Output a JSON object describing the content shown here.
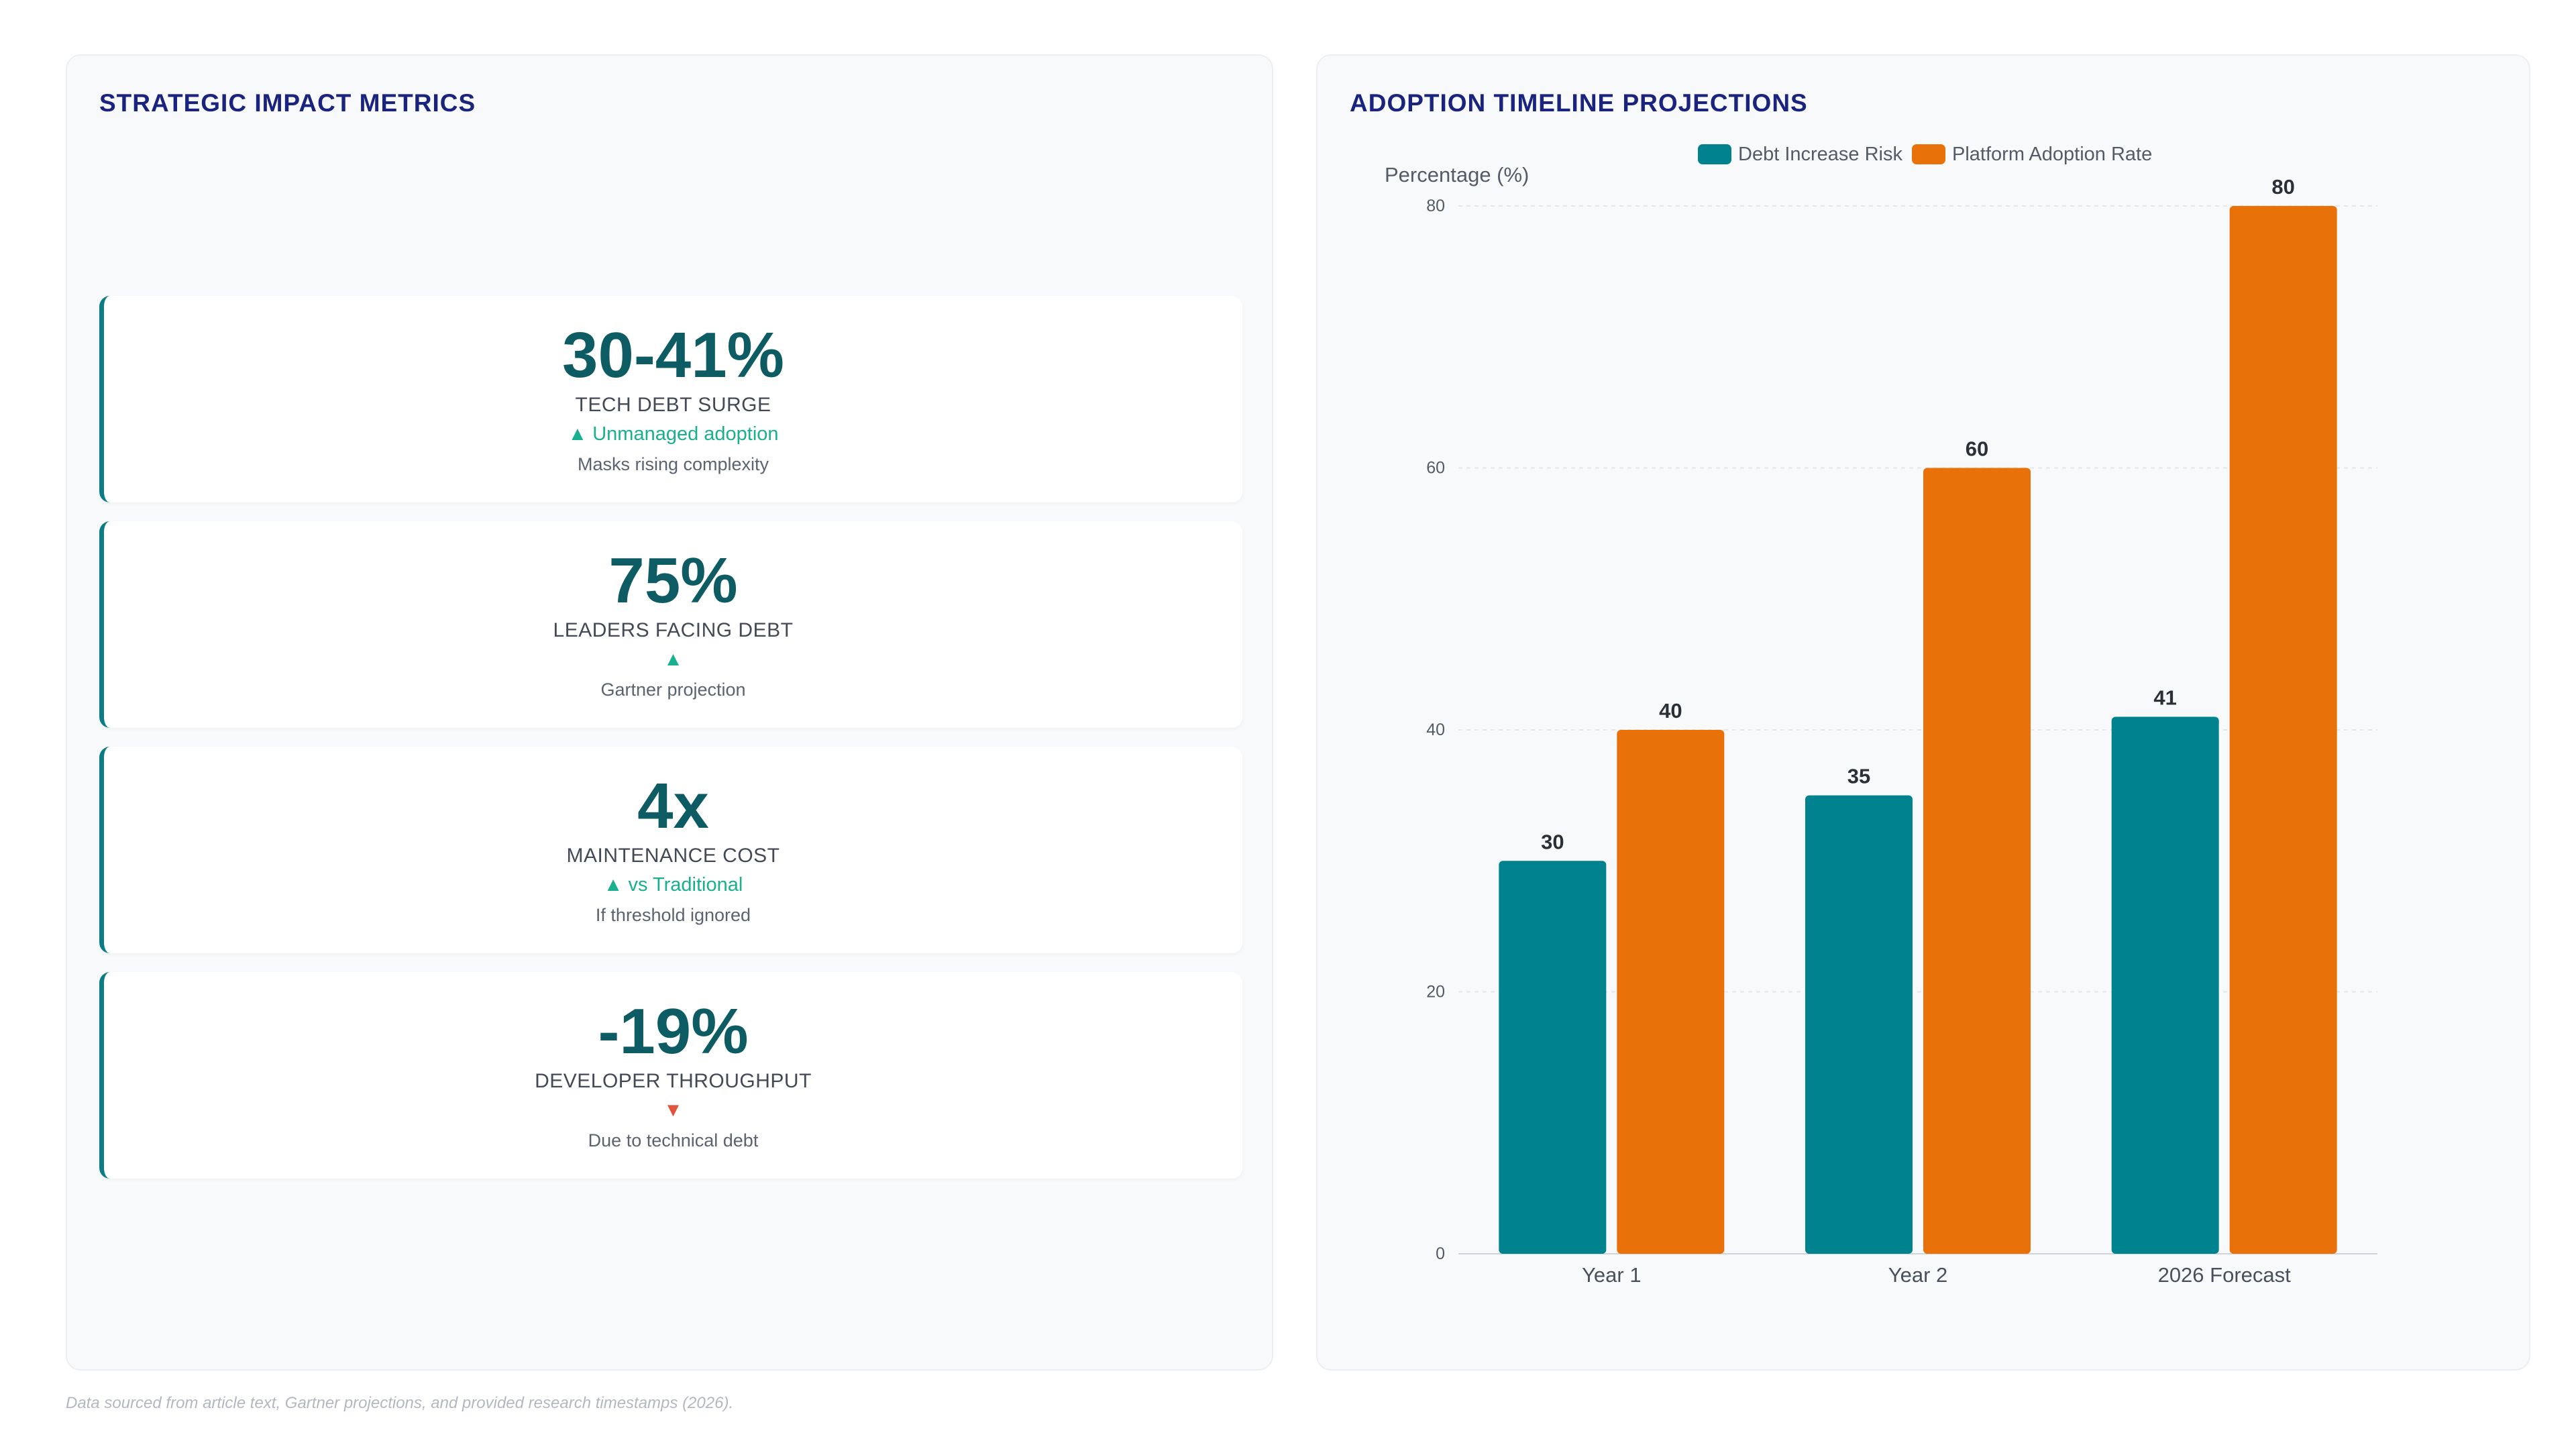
{
  "left_panel": {
    "title": "STRATEGIC IMPACT METRICS",
    "metrics": [
      {
        "value": "30-41%",
        "label": "TECH DEBT SURGE",
        "trend": "▲ Unmanaged adoption",
        "trend_dir": "up",
        "note": "Masks rising complexity"
      },
      {
        "value": "75%",
        "label": "LEADERS FACING DEBT",
        "trend": "▲",
        "trend_dir": "up",
        "note": "Gartner projection"
      },
      {
        "value": "4x",
        "label": "MAINTENANCE COST",
        "trend": "▲ vs Traditional",
        "trend_dir": "up",
        "note": "If threshold ignored"
      },
      {
        "value": "-19%",
        "label": "DEVELOPER THROUGHPUT",
        "trend": "▼",
        "trend_dir": "down",
        "note": "Due to technical debt"
      }
    ]
  },
  "right_panel": {
    "title": "ADOPTION TIMELINE PROJECTIONS"
  },
  "chart_data": {
    "type": "bar",
    "categories": [
      "Year 1",
      "Year 2",
      "2026 Forecast"
    ],
    "series": [
      {
        "name": "Debt Increase Risk",
        "values": [
          30,
          35,
          41
        ],
        "color": "#00838f"
      },
      {
        "name": "Platform Adoption Rate",
        "values": [
          40,
          60,
          80
        ],
        "color": "#e8710a"
      }
    ],
    "title": "",
    "xlabel": "",
    "ylabel": "Percentage (%)",
    "ylim": [
      0,
      80
    ],
    "yticks": [
      0,
      20,
      40,
      60,
      80
    ],
    "grid": true,
    "legend": "top-center"
  },
  "footnote": "Data sourced from article text, Gartner projections, and provided research timestamps (2026)."
}
